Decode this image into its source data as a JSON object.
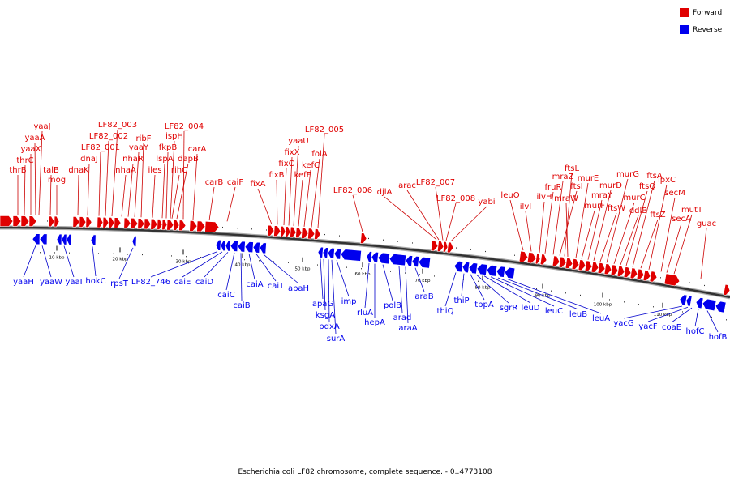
{
  "legend": {
    "forward_label": "Forward",
    "reverse_label": "Reverse",
    "forward_color": "#e00000",
    "reverse_color": "#0000ee"
  },
  "caption": "Escherichia coli LF82 chromosome, complete sequence. - 0..4773108",
  "scale": {
    "start_bp": 0,
    "end_bp": 120000,
    "tick_labels": [
      "10 kbp",
      "20 kbp",
      "30 kbp",
      "40 kbp",
      "50 kbp",
      "60 kbp",
      "70 kbp",
      "80 kbp",
      "90 kbp",
      "100 kbp",
      "110 kbp"
    ]
  },
  "forward_labels": [
    "thrB",
    "thrC",
    "yaaX",
    "yaaA",
    "yaaJ",
    "talB",
    "mog",
    "dnaK",
    "dnaJ",
    "LF82_001",
    "LF82_002",
    "LF82_003",
    "nhaA",
    "nhaR",
    "yaaY",
    "ribF",
    "iles",
    "lspA",
    "fkpB",
    "ispH",
    "rihC",
    "dapB",
    "LF82_004",
    "carA",
    "carB",
    "caiF",
    "fixA",
    "fixB",
    "fixC",
    "fixX",
    "yaaU",
    "kefF",
    "kefC",
    "folA",
    "LF82_005",
    "LF82_006",
    "djlA",
    "arac",
    "LF82_007",
    "LF82_008",
    "yabi",
    "leuO",
    "ilvI",
    "ilvH",
    "fruR",
    "mraZ",
    "ftsI",
    "ftsL",
    "mraW",
    "murE",
    "murF",
    "mraY",
    "murD",
    "ftsW",
    "murG",
    "murC",
    "ddlB",
    "ftsQ",
    "ftsA",
    "ftsZ",
    "lpxC",
    "secM",
    "secA",
    "mutT",
    "guac"
  ],
  "reverse_labels": [
    "yaaH",
    "yaaW",
    "yaaI",
    "hokC",
    "rpsT",
    "LF82_746",
    "caiE",
    "caiD",
    "caiC",
    "caiB",
    "caiA",
    "caiT",
    "apaH",
    "apaG",
    "ksgA",
    "pdxA",
    "surA",
    "imp",
    "rluA",
    "hepA",
    "polB",
    "arad",
    "araA",
    "araB",
    "thiQ",
    "thiP",
    "tbpA",
    "sgrR",
    "leuD",
    "leuC",
    "leuB",
    "leuA",
    "yacG",
    "yacF",
    "coaE",
    "hofC",
    "hofB"
  ]
}
